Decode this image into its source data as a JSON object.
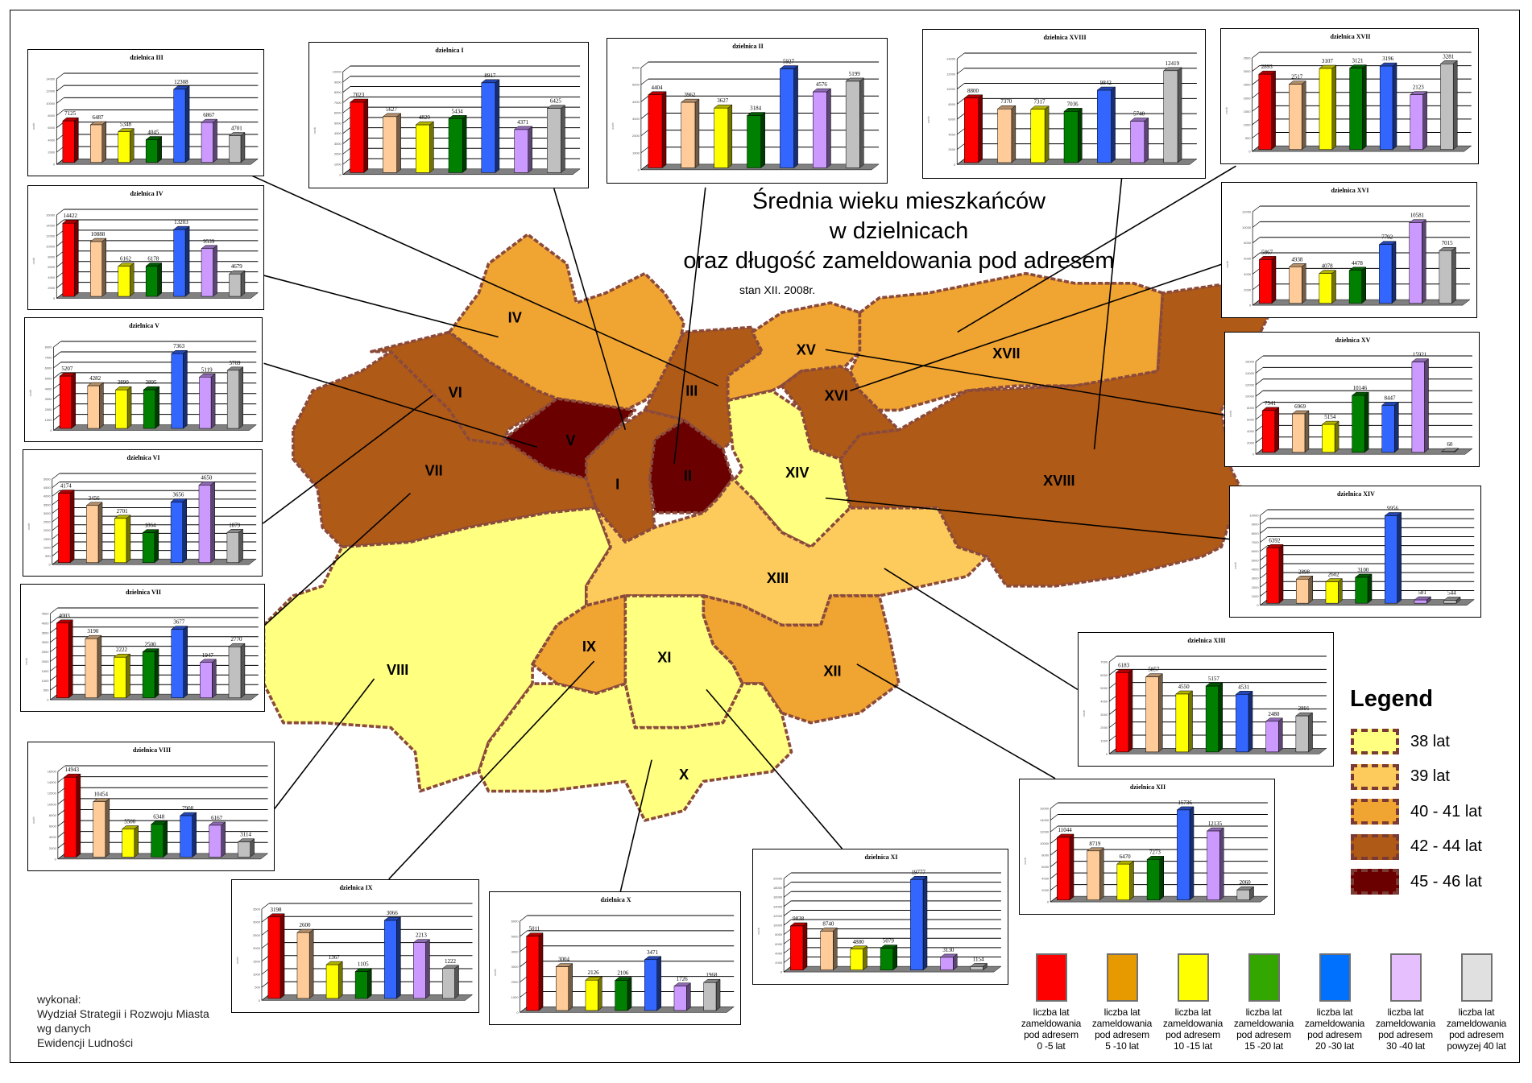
{
  "title": {
    "line1": "Średnia wieku mieszkańców",
    "line2": "w dzielnicach",
    "line3": "oraz długość zameldowania pod adresem",
    "date": "stan XII. 2008r."
  },
  "credits": [
    "wykonał:",
    "Wydział Strategii i Rozwoju Miasta",
    "wg danych",
    "Ewidencji Ludności"
  ],
  "age_legend": {
    "title": "Legend",
    "items": [
      {
        "label": "38  lat",
        "color": "#ffff80"
      },
      {
        "label": "39  lat",
        "color": "#fccb5c"
      },
      {
        "label": "40 - 41 lat",
        "color": "#f0a432"
      },
      {
        "label": "42 - 44 lat",
        "color": "#b05a17"
      },
      {
        "label": "45 - 46 lat",
        "color": "#6b0000"
      }
    ]
  },
  "duration_legend": [
    {
      "line1": "liczba lat",
      "line2": "zameldowania",
      "line3": "pod adresem",
      "line4": "0 -5 lat",
      "color": "#ff0000"
    },
    {
      "line1": "liczba lat",
      "line2": "zameldowania",
      "line3": "pod adresem",
      "line4": "5 -10 lat",
      "color": "#e69a00"
    },
    {
      "line1": "liczba lat",
      "line2": "zameldowania",
      "line3": "pod adresem",
      "line4": "10 -15 lat",
      "color": "#ffff00"
    },
    {
      "line1": "liczba lat",
      "line2": "zameldowania",
      "line3": "pod adresem",
      "line4": "15 -20 lat",
      "color": "#33a600"
    },
    {
      "line1": "liczba lat",
      "line2": "zameldowania",
      "line3": "pod adresem",
      "line4": "20 -30 lat",
      "color": "#0070ff"
    },
    {
      "line1": "liczba lat",
      "line2": "zameldowania",
      "line3": "pod adresem",
      "line4": "30 -40 lat",
      "color": "#e6bfff"
    },
    {
      "line1": "liczba lat",
      "line2": "zameldowania",
      "line3": "pod adresem",
      "line4": "powyzej 40 lat",
      "color": "#e0e0e0"
    }
  ],
  "bar_colors": [
    "#ff0000",
    "#ffcc99",
    "#ffff00",
    "#008000",
    "#3366ff",
    "#cc99ff",
    "#c0c0c0"
  ],
  "districts": [
    {
      "id": "I",
      "age_class": "42 - 44 lat"
    },
    {
      "id": "II",
      "age_class": "45 - 46 lat"
    },
    {
      "id": "III",
      "age_class": "42 - 44 lat"
    },
    {
      "id": "IV",
      "age_class": "40 - 41 lat"
    },
    {
      "id": "V",
      "age_class": "45 - 46 lat"
    },
    {
      "id": "VI",
      "age_class": "42 - 44 lat"
    },
    {
      "id": "VII",
      "age_class": "42 - 44 lat"
    },
    {
      "id": "VIII",
      "age_class": "38  lat"
    },
    {
      "id": "IX",
      "age_class": "40 - 41 lat"
    },
    {
      "id": "X",
      "age_class": "38  lat"
    },
    {
      "id": "XI",
      "age_class": "38  lat"
    },
    {
      "id": "XII",
      "age_class": "40 - 41 lat"
    },
    {
      "id": "XIII",
      "age_class": "39  lat"
    },
    {
      "id": "XIV",
      "age_class": "38  lat"
    },
    {
      "id": "XV",
      "age_class": "40 - 41 lat"
    },
    {
      "id": "XVI",
      "age_class": "42 - 44 lat"
    },
    {
      "id": "XVII",
      "age_class": "40 - 41 lat"
    },
    {
      "id": "XVIII",
      "age_class": "42 - 44 lat"
    }
  ],
  "chart_data": [
    {
      "type": "bar",
      "district": "III",
      "title": "dzielnica III",
      "ylabel": "osób",
      "ylim": [
        0,
        14000
      ],
      "ystep": 2000,
      "values": [
        7125,
        6487,
        5348,
        4045,
        12308,
        6867,
        4701
      ]
    },
    {
      "type": "bar",
      "district": "I",
      "title": "dzielnica I",
      "ylabel": "osób",
      "ylim": [
        0,
        10000
      ],
      "ystep": 1000,
      "values": [
        7023,
        5627,
        4829,
        5434,
        8917,
        4371,
        6425
      ]
    },
    {
      "type": "bar",
      "district": "II",
      "title": "dzielnica II",
      "ylabel": "osób",
      "ylim": [
        0,
        6000
      ],
      "ystep": 1000,
      "values": [
        4404,
        3962,
        3627,
        3184,
        5927,
        4576,
        5199
      ]
    },
    {
      "type": "bar",
      "district": "XVIII",
      "title": "dzielnica XVIII",
      "ylabel": "osób",
      "ylim": [
        0,
        14000
      ],
      "ystep": 2000,
      "values": [
        8800,
        7370,
        7317,
        7036,
        9842,
        5740,
        12419
      ]
    },
    {
      "type": "bar",
      "district": "XVII",
      "title": "dzielnica XVII",
      "ylabel": "osób",
      "ylim": [
        0,
        3500
      ],
      "ystep": 500,
      "values": [
        2893,
        2517,
        3107,
        3121,
        3196,
        2123,
        3281
      ]
    },
    {
      "type": "bar",
      "district": "IV",
      "title": "dzielnica IV",
      "ylabel": "osób",
      "ylim": [
        0,
        16000
      ],
      "ystep": 2000,
      "values": [
        14422,
        10888,
        6162,
        6178,
        13203,
        9539,
        4679
      ]
    },
    {
      "type": "bar",
      "district": "XVI",
      "title": "dzielnica XVI",
      "ylabel": "osób",
      "ylim": [
        0,
        12000
      ],
      "ystep": 2000,
      "values": [
        5867,
        4938,
        4078,
        4478,
        7792,
        10581,
        7015
      ]
    },
    {
      "type": "bar",
      "district": "V",
      "title": "dzielnica V",
      "ylabel": "osób",
      "ylim": [
        0,
        8000
      ],
      "ystep": 1000,
      "values": [
        5207,
        4282,
        3890,
        3895,
        7363,
        5119,
        5769
      ]
    },
    {
      "type": "bar",
      "district": "XV",
      "title": "dzielnica XV",
      "ylabel": "osób",
      "ylim": [
        0,
        16000
      ],
      "ystep": 2000,
      "values": [
        7541,
        6969,
        5154,
        10146,
        8447,
        15921,
        60
      ]
    },
    {
      "type": "bar",
      "district": "VI",
      "title": "dzielnica VI",
      "ylabel": "osób",
      "ylim": [
        0,
        5000
      ],
      "ystep": 500,
      "values": [
        4174,
        3456,
        2701,
        1864,
        3656,
        4650,
        1879
      ]
    },
    {
      "type": "bar",
      "district": "XIV",
      "title": "dzielnica XIV",
      "ylabel": "osób",
      "ylim": [
        0,
        10000
      ],
      "ystep": 1000,
      "values": [
        6392,
        2898,
        2602,
        3100,
        9956,
        581,
        544
      ]
    },
    {
      "type": "bar",
      "district": "VII",
      "title": "dzielnica VII",
      "ylabel": "osób",
      "ylim": [
        0,
        4500
      ],
      "ystep": 500,
      "values": [
        4003,
        3190,
        2222,
        2500,
        3677,
        1947,
        2770
      ]
    },
    {
      "type": "bar",
      "district": "XIII",
      "title": "dzielnica XIII",
      "ylabel": "osób",
      "ylim": [
        0,
        7000
      ],
      "ystep": 1000,
      "values": [
        6183,
        5857,
        4550,
        5157,
        4531,
        2480,
        2891
      ]
    },
    {
      "type": "bar",
      "district": "VIII",
      "title": "dzielnica VIII",
      "ylabel": "osób",
      "ylim": [
        0,
        16000
      ],
      "ystep": 2000,
      "values": [
        14943,
        10454,
        5500,
        6348,
        7908,
        6167,
        3114
      ]
    },
    {
      "type": "bar",
      "district": "XII",
      "title": "dzielnica XII",
      "ylabel": "osób",
      "ylim": [
        0,
        16000
      ],
      "ystep": 2000,
      "values": [
        11044,
        8719,
        6470,
        7273,
        15736,
        12135,
        2060
      ]
    },
    {
      "type": "bar",
      "district": "IX",
      "title": "dzielnica IX",
      "ylabel": "osób",
      "ylim": [
        0,
        3500
      ],
      "ystep": 500,
      "values": [
        3198,
        2600,
        1367,
        1105,
        3066,
        2213,
        1222
      ]
    },
    {
      "type": "bar",
      "district": "XI",
      "title": "dzielnica XI",
      "ylabel": "osób",
      "ylim": [
        0,
        20000
      ],
      "ystep": 2000,
      "values": [
        9838,
        8740,
        4880,
        5079,
        19777,
        3130,
        1154
      ]
    },
    {
      "type": "bar",
      "district": "X",
      "title": "dzielnica X",
      "ylabel": "osób",
      "ylim": [
        0,
        6000
      ],
      "ystep": 1000,
      "values": [
        5011,
        3004,
        2126,
        2106,
        3471,
        1726,
        1968
      ]
    }
  ]
}
